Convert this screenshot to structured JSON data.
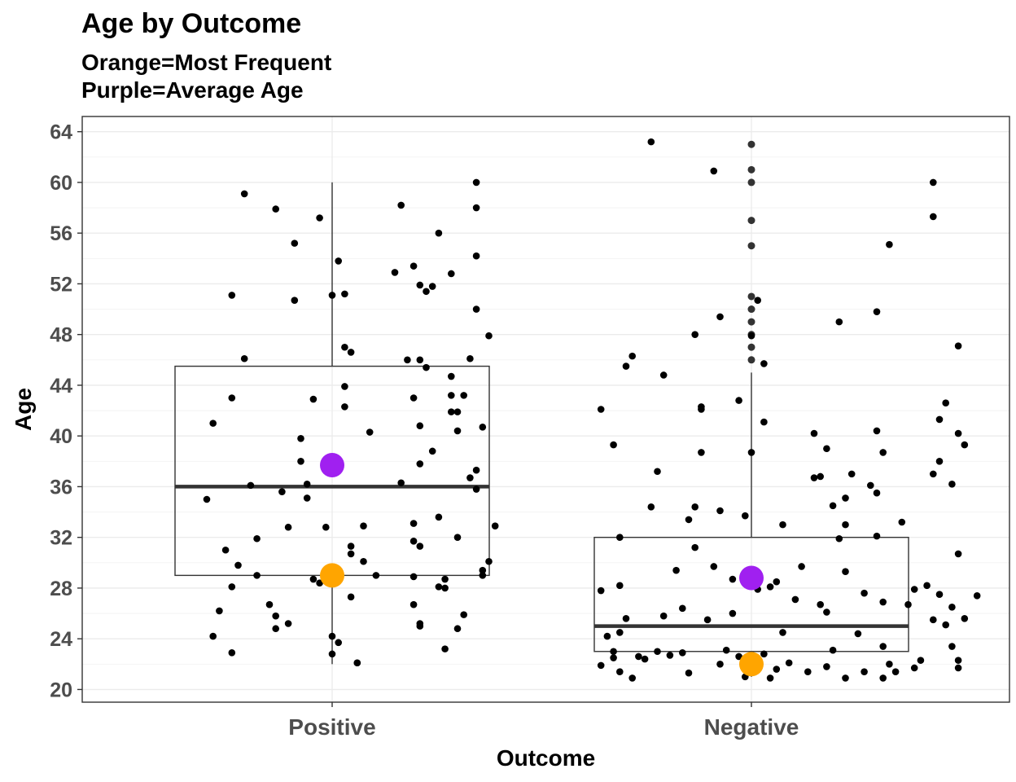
{
  "chart_data": {
    "type": "boxplot",
    "title": "Age by Outcome",
    "subtitle_lines": [
      "Orange=Most Frequent",
      "Purple=Average Age"
    ],
    "xlabel": "Outcome",
    "ylabel": "Age",
    "categories": [
      "Positive",
      "Negative"
    ],
    "ylim": [
      19.0,
      65.2
    ],
    "y_ticks": [
      20,
      24,
      28,
      32,
      36,
      40,
      44,
      48,
      52,
      56,
      60,
      64
    ],
    "grid": true,
    "colors": {
      "mode": "#FFA500",
      "mean": "#A020F0",
      "points": "#000000",
      "box": "#333333"
    },
    "boxes": [
      {
        "category": "Positive",
        "min": 22,
        "q1": 29,
        "median": 36,
        "q3": 45.5,
        "max": 60,
        "mean": 37.7,
        "mode": 29
      },
      {
        "category": "Negative",
        "min": 21,
        "q1": 23,
        "median": 25,
        "q3": 32,
        "max": 45,
        "mean": 28.8,
        "mode": 22,
        "outliers": [
          46,
          47,
          48,
          49,
          50,
          51,
          55,
          57,
          60,
          61,
          63
        ]
      }
    ],
    "jitter_points": [
      {
        "group": "Positive",
        "x": -0.2,
        "y": 35
      },
      {
        "group": "Positive",
        "x": -0.19,
        "y": 41
      },
      {
        "group": "Positive",
        "x": -0.17,
        "y": 31
      },
      {
        "group": "Positive",
        "x": -0.18,
        "y": 26.2
      },
      {
        "group": "Positive",
        "x": -0.19,
        "y": 24.2
      },
      {
        "group": "Positive",
        "x": -0.16,
        "y": 22.9
      },
      {
        "group": "Positive",
        "x": -0.16,
        "y": 28.1
      },
      {
        "group": "Positive",
        "x": -0.15,
        "y": 29.8
      },
      {
        "group": "Positive",
        "x": -0.16,
        "y": 43
      },
      {
        "group": "Positive",
        "x": -0.16,
        "y": 51.1
      },
      {
        "group": "Positive",
        "x": -0.14,
        "y": 59.1
      },
      {
        "group": "Positive",
        "x": -0.14,
        "y": 46.1
      },
      {
        "group": "Positive",
        "x": -0.13,
        "y": 36.1
      },
      {
        "group": "Positive",
        "x": -0.12,
        "y": 31.9
      },
      {
        "group": "Positive",
        "x": -0.12,
        "y": 29
      },
      {
        "group": "Positive",
        "x": -0.1,
        "y": 26.7
      },
      {
        "group": "Positive",
        "x": -0.09,
        "y": 25.8
      },
      {
        "group": "Positive",
        "x": -0.09,
        "y": 24.8
      },
      {
        "group": "Positive",
        "x": -0.07,
        "y": 25.2
      },
      {
        "group": "Positive",
        "x": -0.07,
        "y": 32.8
      },
      {
        "group": "Positive",
        "x": -0.08,
        "y": 35.6
      },
      {
        "group": "Positive",
        "x": -0.09,
        "y": 57.9
      },
      {
        "group": "Positive",
        "x": -0.06,
        "y": 50.7
      },
      {
        "group": "Positive",
        "x": -0.06,
        "y": 55.2
      },
      {
        "group": "Positive",
        "x": -0.05,
        "y": 39.8
      },
      {
        "group": "Positive",
        "x": -0.05,
        "y": 38
      },
      {
        "group": "Positive",
        "x": -0.04,
        "y": 36.2
      },
      {
        "group": "Positive",
        "x": -0.04,
        "y": 35.1
      },
      {
        "group": "Positive",
        "x": -0.03,
        "y": 42.9
      },
      {
        "group": "Positive",
        "x": -0.03,
        "y": 28.7
      },
      {
        "group": "Positive",
        "x": -0.02,
        "y": 28.4
      },
      {
        "group": "Positive",
        "x": -0.02,
        "y": 57.2
      },
      {
        "group": "Positive",
        "x": -0.01,
        "y": 32.8
      },
      {
        "group": "Positive",
        "x": 0.02,
        "y": 42.3
      },
      {
        "group": "Positive",
        "x": 0.02,
        "y": 43.9
      },
      {
        "group": "Positive",
        "x": 0.02,
        "y": 47
      },
      {
        "group": "Positive",
        "x": 0.03,
        "y": 46.6
      },
      {
        "group": "Positive",
        "x": 0.02,
        "y": 51.2
      },
      {
        "group": "Positive",
        "x": 0.03,
        "y": 30.7
      },
      {
        "group": "Positive",
        "x": 0.03,
        "y": 27.3
      },
      {
        "group": "Positive",
        "x": 0.01,
        "y": 23.7
      },
      {
        "group": "Positive",
        "x": 0.04,
        "y": 22.1
      },
      {
        "group": "Positive",
        "x": 0.05,
        "y": 32.9
      },
      {
        "group": "Positive",
        "x": 0.05,
        "y": 30.1
      },
      {
        "group": "Positive",
        "x": 0.0,
        "y": 51.1
      },
      {
        "group": "Positive",
        "x": 0.01,
        "y": 53.8
      },
      {
        "group": "Positive",
        "x": 0.0,
        "y": 24.2
      },
      {
        "group": "Positive",
        "x": 0.0,
        "y": 22.8
      },
      {
        "group": "Positive",
        "x": 0.04,
        "y": 22.1
      },
      {
        "group": "Positive",
        "x": 0.03,
        "y": 31.3
      },
      {
        "group": "Positive",
        "x": 0.06,
        "y": 40.3
      },
      {
        "group": "Positive",
        "x": 0.07,
        "y": 29
      },
      {
        "group": "Positive",
        "x": 0.1,
        "y": 52.9
      },
      {
        "group": "Positive",
        "x": 0.11,
        "y": 58.2
      },
      {
        "group": "Positive",
        "x": 0.12,
        "y": 46
      },
      {
        "group": "Positive",
        "x": 0.13,
        "y": 43
      },
      {
        "group": "Positive",
        "x": 0.13,
        "y": 53.4
      },
      {
        "group": "Positive",
        "x": 0.14,
        "y": 46
      },
      {
        "group": "Positive",
        "x": 0.14,
        "y": 51.9
      },
      {
        "group": "Positive",
        "x": 0.15,
        "y": 51.4
      },
      {
        "group": "Positive",
        "x": 0.14,
        "y": 40.8
      },
      {
        "group": "Positive",
        "x": 0.14,
        "y": 37.8
      },
      {
        "group": "Positive",
        "x": 0.16,
        "y": 38.8
      },
      {
        "group": "Positive",
        "x": 0.11,
        "y": 36.3
      },
      {
        "group": "Positive",
        "x": 0.13,
        "y": 33.1
      },
      {
        "group": "Positive",
        "x": 0.13,
        "y": 31.7
      },
      {
        "group": "Positive",
        "x": 0.14,
        "y": 31.3
      },
      {
        "group": "Positive",
        "x": 0.13,
        "y": 28.9
      },
      {
        "group": "Positive",
        "x": 0.13,
        "y": 26.7
      },
      {
        "group": "Positive",
        "x": 0.14,
        "y": 25.2
      },
      {
        "group": "Positive",
        "x": 0.14,
        "y": 25
      },
      {
        "group": "Positive",
        "x": 0.15,
        "y": 45.4
      },
      {
        "group": "Positive",
        "x": 0.16,
        "y": 51.8
      },
      {
        "group": "Positive",
        "x": 0.17,
        "y": 56
      },
      {
        "group": "Positive",
        "x": 0.17,
        "y": 33.6
      },
      {
        "group": "Positive",
        "x": 0.17,
        "y": 28.1
      },
      {
        "group": "Positive",
        "x": 0.18,
        "y": 28.7
      },
      {
        "group": "Positive",
        "x": 0.18,
        "y": 23.2
      },
      {
        "group": "Positive",
        "x": 0.19,
        "y": 52.8
      },
      {
        "group": "Positive",
        "x": 0.19,
        "y": 44.7
      },
      {
        "group": "Positive",
        "x": 0.19,
        "y": 43.2
      },
      {
        "group": "Positive",
        "x": 0.19,
        "y": 41.9
      },
      {
        "group": "Positive",
        "x": 0.2,
        "y": 41.9
      },
      {
        "group": "Positive",
        "x": 0.2,
        "y": 40.4
      },
      {
        "group": "Positive",
        "x": 0.2,
        "y": 32
      },
      {
        "group": "Positive",
        "x": 0.18,
        "y": 28
      },
      {
        "group": "Positive",
        "x": 0.2,
        "y": 24.8
      },
      {
        "group": "Positive",
        "x": 0.21,
        "y": 43.2
      },
      {
        "group": "Positive",
        "x": 0.22,
        "y": 46.1
      },
      {
        "group": "Positive",
        "x": 0.22,
        "y": 36.7
      },
      {
        "group": "Positive",
        "x": 0.21,
        "y": 25.9
      },
      {
        "group": "Positive",
        "x": 0.23,
        "y": 60
      },
      {
        "group": "Positive",
        "x": 0.23,
        "y": 58
      },
      {
        "group": "Positive",
        "x": 0.23,
        "y": 54.2
      },
      {
        "group": "Positive",
        "x": 0.23,
        "y": 50
      },
      {
        "group": "Positive",
        "x": 0.24,
        "y": 40.7
      },
      {
        "group": "Positive",
        "x": 0.23,
        "y": 37.3
      },
      {
        "group": "Positive",
        "x": 0.23,
        "y": 35.8
      },
      {
        "group": "Positive",
        "x": 0.24,
        "y": 29.4
      },
      {
        "group": "Positive",
        "x": 0.24,
        "y": 29
      },
      {
        "group": "Positive",
        "x": 0.25,
        "y": 47.9
      },
      {
        "group": "Positive",
        "x": 0.25,
        "y": 30.1
      },
      {
        "group": "Positive",
        "x": 0.26,
        "y": 32.9
      },
      {
        "group": "Negative",
        "x": -0.24,
        "y": 42.1
      },
      {
        "group": "Negative",
        "x": -0.24,
        "y": 27.8
      },
      {
        "group": "Negative",
        "x": -0.24,
        "y": 21.9
      },
      {
        "group": "Negative",
        "x": -0.23,
        "y": 24.2
      },
      {
        "group": "Negative",
        "x": -0.22,
        "y": 22.5
      },
      {
        "group": "Negative",
        "x": -0.22,
        "y": 23
      },
      {
        "group": "Negative",
        "x": -0.22,
        "y": 39.3
      },
      {
        "group": "Negative",
        "x": -0.21,
        "y": 32
      },
      {
        "group": "Negative",
        "x": -0.21,
        "y": 28.2
      },
      {
        "group": "Negative",
        "x": -0.21,
        "y": 21.4
      },
      {
        "group": "Negative",
        "x": -0.21,
        "y": 24.5
      },
      {
        "group": "Negative",
        "x": -0.2,
        "y": 45.5
      },
      {
        "group": "Negative",
        "x": -0.2,
        "y": 25.6
      },
      {
        "group": "Negative",
        "x": -0.19,
        "y": 46.3
      },
      {
        "group": "Negative",
        "x": -0.19,
        "y": 20.9
      },
      {
        "group": "Negative",
        "x": -0.18,
        "y": 22.6
      },
      {
        "group": "Negative",
        "x": -0.17,
        "y": 22.4
      },
      {
        "group": "Negative",
        "x": -0.16,
        "y": 63.2
      },
      {
        "group": "Negative",
        "x": -0.16,
        "y": 34.4
      },
      {
        "group": "Negative",
        "x": -0.15,
        "y": 37.2
      },
      {
        "group": "Negative",
        "x": -0.15,
        "y": 23
      },
      {
        "group": "Negative",
        "x": -0.14,
        "y": 44.8
      },
      {
        "group": "Negative",
        "x": -0.14,
        "y": 25.8
      },
      {
        "group": "Negative",
        "x": -0.13,
        "y": 22.7
      },
      {
        "group": "Negative",
        "x": -0.12,
        "y": 29.4
      },
      {
        "group": "Negative",
        "x": -0.11,
        "y": 26.4
      },
      {
        "group": "Negative",
        "x": -0.11,
        "y": 22.9
      },
      {
        "group": "Negative",
        "x": -0.1,
        "y": 33.4
      },
      {
        "group": "Negative",
        "x": -0.1,
        "y": 21.3
      },
      {
        "group": "Negative",
        "x": -0.09,
        "y": 48
      },
      {
        "group": "Negative",
        "x": -0.09,
        "y": 34.4
      },
      {
        "group": "Negative",
        "x": -0.09,
        "y": 31.2
      },
      {
        "group": "Negative",
        "x": -0.08,
        "y": 42.1
      },
      {
        "group": "Negative",
        "x": -0.08,
        "y": 42.3
      },
      {
        "group": "Negative",
        "x": -0.08,
        "y": 38.7
      },
      {
        "group": "Negative",
        "x": -0.07,
        "y": 25.5
      },
      {
        "group": "Negative",
        "x": -0.06,
        "y": 60.9
      },
      {
        "group": "Negative",
        "x": -0.06,
        "y": 29.7
      },
      {
        "group": "Negative",
        "x": -0.05,
        "y": 49.4
      },
      {
        "group": "Negative",
        "x": -0.05,
        "y": 34.1
      },
      {
        "group": "Negative",
        "x": -0.05,
        "y": 22
      },
      {
        "group": "Negative",
        "x": -0.04,
        "y": 23.1
      },
      {
        "group": "Negative",
        "x": -0.03,
        "y": 26
      },
      {
        "group": "Negative",
        "x": -0.03,
        "y": 28.7
      },
      {
        "group": "Negative",
        "x": -0.02,
        "y": 42.8
      },
      {
        "group": "Negative",
        "x": -0.02,
        "y": 22.6
      },
      {
        "group": "Negative",
        "x": -0.01,
        "y": 33.7
      },
      {
        "group": "Negative",
        "x": -0.01,
        "y": 21
      },
      {
        "group": "Negative",
        "x": 0.0,
        "y": 47.9
      },
      {
        "group": "Negative",
        "x": 0.0,
        "y": 38.7
      },
      {
        "group": "Negative",
        "x": 0.01,
        "y": 27.9
      },
      {
        "group": "Negative",
        "x": 0.01,
        "y": 50.7
      },
      {
        "group": "Negative",
        "x": 0.02,
        "y": 45.7
      },
      {
        "group": "Negative",
        "x": 0.02,
        "y": 41.1
      },
      {
        "group": "Negative",
        "x": 0.02,
        "y": 22.8
      },
      {
        "group": "Negative",
        "x": 0.03,
        "y": 28.1
      },
      {
        "group": "Negative",
        "x": 0.03,
        "y": 20.9
      },
      {
        "group": "Negative",
        "x": 0.04,
        "y": 21.6
      },
      {
        "group": "Negative",
        "x": 0.04,
        "y": 28.5
      },
      {
        "group": "Negative",
        "x": 0.05,
        "y": 33
      },
      {
        "group": "Negative",
        "x": 0.05,
        "y": 24.5
      },
      {
        "group": "Negative",
        "x": 0.06,
        "y": 22.1
      },
      {
        "group": "Negative",
        "x": 0.07,
        "y": 27.1
      },
      {
        "group": "Negative",
        "x": 0.08,
        "y": 29.7
      },
      {
        "group": "Negative",
        "x": 0.09,
        "y": 21.4
      },
      {
        "group": "Negative",
        "x": 0.1,
        "y": 36.7
      },
      {
        "group": "Negative",
        "x": 0.1,
        "y": 40.2
      },
      {
        "group": "Negative",
        "x": 0.11,
        "y": 26.7
      },
      {
        "group": "Negative",
        "x": 0.11,
        "y": 36.8
      },
      {
        "group": "Negative",
        "x": 0.12,
        "y": 39
      },
      {
        "group": "Negative",
        "x": 0.12,
        "y": 26.1
      },
      {
        "group": "Negative",
        "x": 0.12,
        "y": 21.8
      },
      {
        "group": "Negative",
        "x": 0.13,
        "y": 34.5
      },
      {
        "group": "Negative",
        "x": 0.13,
        "y": 23.1
      },
      {
        "group": "Negative",
        "x": 0.14,
        "y": 49
      },
      {
        "group": "Negative",
        "x": 0.14,
        "y": 31.9
      },
      {
        "group": "Negative",
        "x": 0.15,
        "y": 35.1
      },
      {
        "group": "Negative",
        "x": 0.15,
        "y": 33
      },
      {
        "group": "Negative",
        "x": 0.15,
        "y": 29.3
      },
      {
        "group": "Negative",
        "x": 0.15,
        "y": 20.9
      },
      {
        "group": "Negative",
        "x": 0.16,
        "y": 37
      },
      {
        "group": "Negative",
        "x": 0.17,
        "y": 24.4
      },
      {
        "group": "Negative",
        "x": 0.18,
        "y": 27.6
      },
      {
        "group": "Negative",
        "x": 0.18,
        "y": 21.4
      },
      {
        "group": "Negative",
        "x": 0.19,
        "y": 36.1
      },
      {
        "group": "Negative",
        "x": 0.2,
        "y": 49.8
      },
      {
        "group": "Negative",
        "x": 0.2,
        "y": 35.5
      },
      {
        "group": "Negative",
        "x": 0.2,
        "y": 32.1
      },
      {
        "group": "Negative",
        "x": 0.21,
        "y": 38.7
      },
      {
        "group": "Negative",
        "x": 0.2,
        "y": 40.4
      },
      {
        "group": "Negative",
        "x": 0.21,
        "y": 26.9
      },
      {
        "group": "Negative",
        "x": 0.21,
        "y": 23.4
      },
      {
        "group": "Negative",
        "x": 0.21,
        "y": 20.9
      },
      {
        "group": "Negative",
        "x": 0.22,
        "y": 55.1
      },
      {
        "group": "Negative",
        "x": 0.22,
        "y": 22
      },
      {
        "group": "Negative",
        "x": 0.23,
        "y": 21.4
      },
      {
        "group": "Negative",
        "x": 0.24,
        "y": 33.2
      },
      {
        "group": "Negative",
        "x": 0.25,
        "y": 26.7
      },
      {
        "group": "Negative",
        "x": 0.26,
        "y": 27.9
      },
      {
        "group": "Negative",
        "x": 0.26,
        "y": 21.7
      },
      {
        "group": "Negative",
        "x": 0.27,
        "y": 22.3
      },
      {
        "group": "Negative",
        "x": 0.28,
        "y": 28.2
      },
      {
        "group": "Negative",
        "x": 0.29,
        "y": 60
      },
      {
        "group": "Negative",
        "x": 0.29,
        "y": 57.3
      },
      {
        "group": "Negative",
        "x": 0.29,
        "y": 37
      },
      {
        "group": "Negative",
        "x": 0.29,
        "y": 25.5
      },
      {
        "group": "Negative",
        "x": 0.3,
        "y": 41.3
      },
      {
        "group": "Negative",
        "x": 0.3,
        "y": 38
      },
      {
        "group": "Negative",
        "x": 0.3,
        "y": 27.5
      },
      {
        "group": "Negative",
        "x": 0.31,
        "y": 42.6
      },
      {
        "group": "Negative",
        "x": 0.31,
        "y": 25.1
      },
      {
        "group": "Negative",
        "x": 0.32,
        "y": 36.2
      },
      {
        "group": "Negative",
        "x": 0.32,
        "y": 26.5
      },
      {
        "group": "Negative",
        "x": 0.32,
        "y": 23.4
      },
      {
        "group": "Negative",
        "x": 0.33,
        "y": 47.1
      },
      {
        "group": "Negative",
        "x": 0.33,
        "y": 40.2
      },
      {
        "group": "Negative",
        "x": 0.33,
        "y": 30.7
      },
      {
        "group": "Negative",
        "x": 0.34,
        "y": 39.3
      },
      {
        "group": "Negative",
        "x": 0.34,
        "y": 25.6
      },
      {
        "group": "Negative",
        "x": 0.36,
        "y": 27.4
      },
      {
        "group": "Negative",
        "x": 0.33,
        "y": 22.3
      },
      {
        "group": "Negative",
        "x": 0.33,
        "y": 21.7
      }
    ]
  }
}
